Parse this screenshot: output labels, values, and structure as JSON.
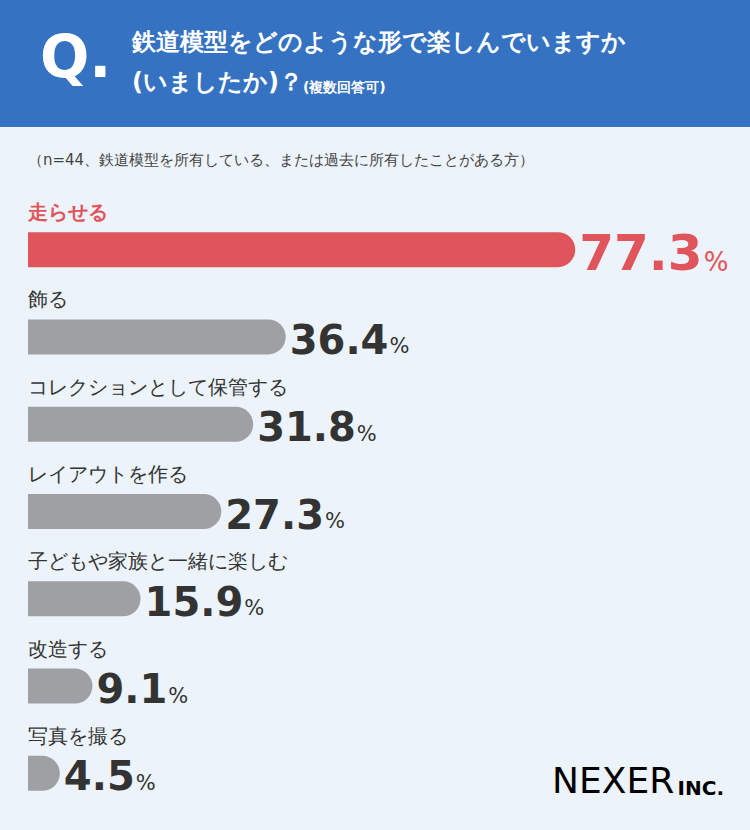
{
  "chart_data": {
    "type": "bar",
    "orientation": "horizontal",
    "question_mark": "Q.",
    "title": "鉄道模型をどのような形で楽しんでいますか(いましたか)？",
    "title_note": "(複数回答可)",
    "subtitle": "（n=44、鉄道模型を所有している、または過去に所有したことがある方）",
    "categories": [
      "走らせる",
      "飾る",
      "コレクションとして保管する",
      "レイアウトを作る",
      "子どもや家族と一緒に楽しむ",
      "改造する",
      "写真を撮る"
    ],
    "values": [
      77.3,
      36.4,
      31.8,
      27.3,
      15.9,
      9.1,
      4.5
    ],
    "value_labels": [
      "77.3%",
      "36.4%",
      "31.8%",
      "27.3%",
      "15.9%",
      "9.1%",
      "4.5%"
    ],
    "colors": [
      "#e0555b",
      "#9fa0a4",
      "#9fa0a4",
      "#9fa0a4",
      "#9fa0a4",
      "#9fa0a4",
      "#9fa0a4"
    ],
    "xlim": [
      0,
      100
    ],
    "data_labels": true,
    "tick_labels": false,
    "grid": false,
    "logo": "NEXER",
    "logo_suffix": "INC."
  }
}
